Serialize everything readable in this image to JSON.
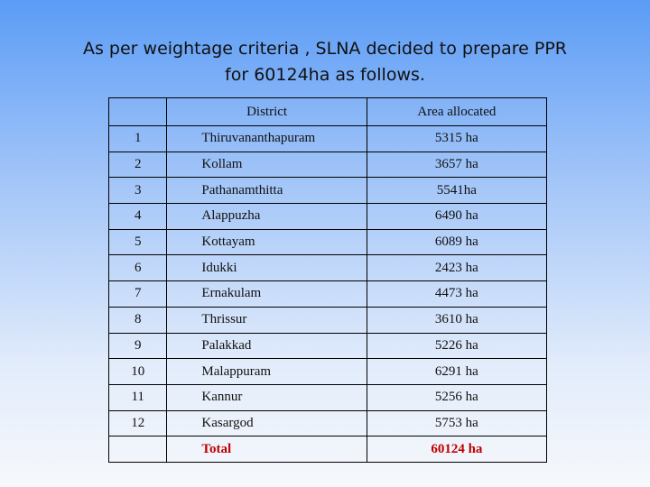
{
  "title": {
    "line1": "As per weightage criteria , SLNA decided to prepare PPR",
    "line2": "for 60124ha as follows."
  },
  "table": {
    "headers": [
      "",
      "District",
      "Area allocated"
    ],
    "rows": [
      [
        "1",
        "Thiruvananthapuram",
        "5315 ha"
      ],
      [
        "2",
        "Kollam",
        "3657 ha"
      ],
      [
        "3",
        "Pathanamthitta",
        "5541ha"
      ],
      [
        "4",
        "Alappuzha",
        "6490 ha"
      ],
      [
        "5",
        "Kottayam",
        "6089 ha"
      ],
      [
        "6",
        "Idukki",
        "2423 ha"
      ],
      [
        "7",
        "Ernakulam",
        "4473 ha"
      ],
      [
        "8",
        "Thrissur",
        "3610 ha"
      ],
      [
        "9",
        "Palakkad",
        "5226 ha"
      ],
      [
        "10",
        "Malappuram",
        "6291 ha"
      ],
      [
        "11",
        "Kannur",
        "5256 ha"
      ],
      [
        "12",
        "Kasargod",
        "5753 ha"
      ]
    ],
    "total_label": "Total",
    "total_value": "60124 ha"
  },
  "colors": {
    "total_text": "#c00000"
  }
}
